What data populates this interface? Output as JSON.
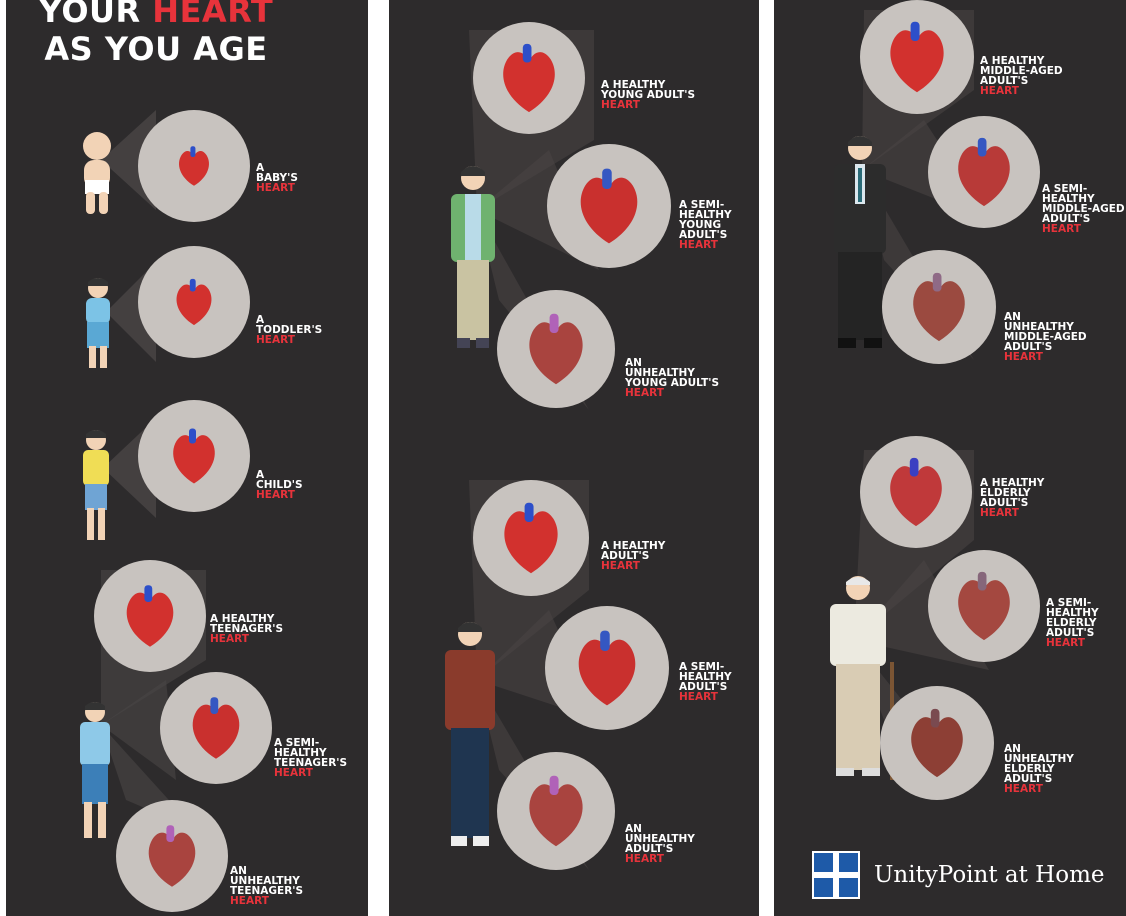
{
  "header": {
    "title_line1_white": "YOUR ",
    "title_line1_red": "HEART",
    "title_line2": "AS YOU AGE"
  },
  "panel1": {
    "baby": {
      "l1": "A",
      "l2": "BABY'S",
      "h": "HEART"
    },
    "toddler": {
      "l1": "A",
      "l2": "TODDLER'S",
      "h": "HEART"
    },
    "child": {
      "l1": "A",
      "l2": "CHILD'S",
      "h": "HEART"
    },
    "teen_healthy": {
      "l1": "A HEALTHY",
      "l2": "TEENAGER'S",
      "h": "HEART"
    },
    "teen_semi": {
      "l1": "A SEMI-",
      "l2": "HEALTHY",
      "l3": "TEENAGER'S",
      "h": "HEART"
    },
    "teen_unhealthy": {
      "l1": "AN",
      "l2": "UNHEALTHY",
      "l3": "TEENAGER'S",
      "h": "HEART"
    }
  },
  "panel2": {
    "ya_healthy": {
      "l1": "A HEALTHY",
      "l2": "YOUNG ADULT'S",
      "h": "HEART"
    },
    "ya_semi": {
      "l1": "A SEMI-",
      "l2": "HEALTHY",
      "l3": "YOUNG",
      "l4": "ADULT'S",
      "h": "HEART"
    },
    "ya_unhealthy": {
      "l1": "AN",
      "l2": "UNHEALTHY",
      "l3": "YOUNG ADULT'S",
      "h": "HEART"
    },
    "adult_healthy": {
      "l1": "A HEALTHY",
      "l2": "ADULT'S",
      "h": "HEART"
    },
    "adult_semi": {
      "l1": "A SEMI-",
      "l2": "HEALTHY",
      "l3": "ADULT'S",
      "h": "HEART"
    },
    "adult_unhealthy": {
      "l1": "AN",
      "l2": "UNHEALTHY",
      "l3": "ADULT'S",
      "h": "HEART"
    }
  },
  "panel3": {
    "ma_healthy": {
      "l1": "A HEALTHY",
      "l2": "MIDDLE-AGED",
      "l3": "ADULT'S",
      "h": "HEART"
    },
    "ma_semi": {
      "l1": "A SEMI-",
      "l2": "HEALTHY",
      "l3": "MIDDLE-AGED",
      "l4": "ADULT'S",
      "h": "HEART"
    },
    "ma_unhealthy": {
      "l1": "AN",
      "l2": "UNHEALTHY",
      "l3": "MIDDLE-AGED",
      "l4": "ADULT'S",
      "h": "HEART"
    },
    "el_healthy": {
      "l1": "A HEALTHY",
      "l2": "ELDERLY",
      "l3": "ADULT'S",
      "h": "HEART"
    },
    "el_semi": {
      "l1": "A SEMI-",
      "l2": "HEALTHY",
      "l3": "ELDERLY",
      "l4": "ADULT'S",
      "h": "HEART"
    },
    "el_unhealthy": {
      "l1": "AN",
      "l2": "UNHEALTHY",
      "l3": "ELDERLY",
      "l4": "ADULT'S",
      "h": "HEART"
    }
  },
  "footer": {
    "logo_text": "UnityPoint at Home"
  },
  "colors": {
    "background": "#2d2b2c",
    "accent_red": "#e7333b",
    "circle": "#c8c3bf",
    "logo_blue": "#1e5aa8"
  }
}
